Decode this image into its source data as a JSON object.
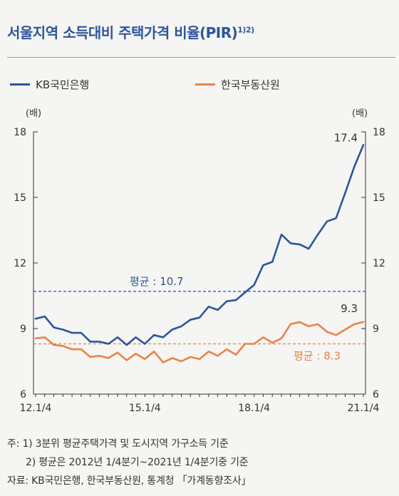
{
  "title": "서울지역 소득대비 주택가격 비율(PIR)",
  "title_sup": "1)2)",
  "legend": [
    {
      "label": "KB국민은행",
      "color": "#2e5597"
    },
    {
      "label": "한국부동산원",
      "color": "#e8834a"
    }
  ],
  "unit_left": "(배)",
  "unit_right": "(배)",
  "notes": {
    "note1": "주: 1) 3분위 평균주택가격 및 도시지역 가구소득 기준",
    "note2": "2) 평균은 2012년 1/4분기~2021년 1/4분기중 기준",
    "source": "자료: KB국민은행, 한국부동산원, 통계청 「가계동향조사」"
  },
  "chart_data": {
    "type": "line",
    "x": [
      "12.1/4",
      "12.2/4",
      "12.3/4",
      "12.4/4",
      "13.1/4",
      "13.2/4",
      "13.3/4",
      "13.4/4",
      "14.1/4",
      "14.2/4",
      "14.3/4",
      "14.4/4",
      "15.1/4",
      "15.2/4",
      "15.3/4",
      "15.4/4",
      "16.1/4",
      "16.2/4",
      "16.3/4",
      "16.4/4",
      "17.1/4",
      "17.2/4",
      "17.3/4",
      "17.4/4",
      "18.1/4",
      "18.2/4",
      "18.3/4",
      "18.4/4",
      "19.1/4",
      "19.2/4",
      "19.3/4",
      "19.4/4",
      "20.1/4",
      "20.2/4",
      "20.3/4",
      "20.4/4",
      "21.1/4"
    ],
    "x_tick_labels": [
      "12.1/4",
      "15.1/4",
      "18.1/4",
      "21.1/4"
    ],
    "x_tick_index": [
      0,
      12,
      24,
      36
    ],
    "y_ticks": [
      6,
      9,
      12,
      15,
      18
    ],
    "ylim": [
      6,
      18
    ],
    "series": [
      {
        "name": "KB국민은행",
        "color": "#2e5597",
        "values": [
          9.45,
          9.55,
          9.05,
          8.95,
          8.8,
          8.8,
          8.4,
          8.4,
          8.3,
          8.6,
          8.25,
          8.6,
          8.3,
          8.7,
          8.6,
          8.95,
          9.1,
          9.4,
          9.5,
          10.0,
          9.85,
          10.25,
          10.3,
          10.65,
          11.0,
          11.9,
          12.05,
          13.3,
          12.9,
          12.85,
          12.65,
          13.3,
          13.9,
          14.05,
          15.2,
          16.4,
          17.4
        ],
        "average": 10.7,
        "average_label": "평균 : 10.7",
        "end_label": "17.4"
      },
      {
        "name": "한국부동산원",
        "color": "#e8834a",
        "values": [
          8.55,
          8.6,
          8.25,
          8.2,
          8.05,
          8.05,
          7.7,
          7.75,
          7.65,
          7.9,
          7.55,
          7.85,
          7.6,
          7.95,
          7.45,
          7.65,
          7.5,
          7.7,
          7.6,
          7.95,
          7.75,
          8.05,
          7.8,
          8.3,
          8.3,
          8.6,
          8.35,
          8.55,
          9.2,
          9.3,
          9.1,
          9.2,
          8.85,
          8.7,
          8.95,
          9.2,
          9.3
        ],
        "average": 8.3,
        "average_label": "평균 : 8.3",
        "end_label": "9.3"
      }
    ]
  }
}
